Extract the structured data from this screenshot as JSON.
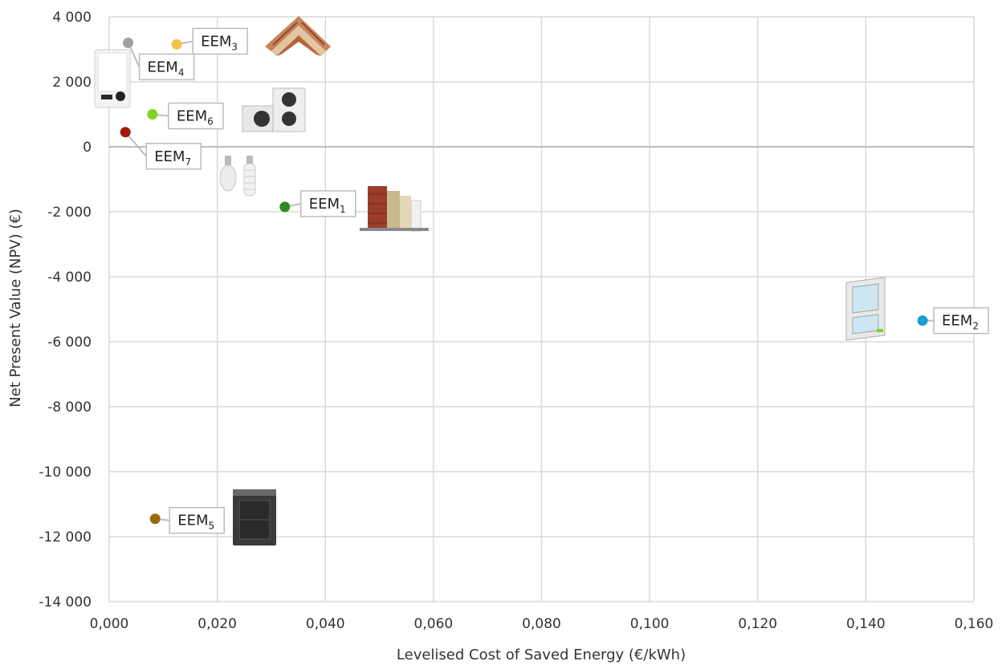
{
  "chart_data": {
    "type": "scatter",
    "xlabel": "Levelised Cost of Saved Energy (€/kWh)",
    "ylabel": "Net Present Value (NPV) (€)",
    "xlim": [
      0,
      0.16
    ],
    "ylim": [
      -14000,
      4000
    ],
    "x_ticks": [
      "0,000",
      "0,020",
      "0,040",
      "0,060",
      "0,080",
      "0,100",
      "0,120",
      "0,140",
      "0,160"
    ],
    "y_ticks": [
      "4 000",
      "2 000",
      "0",
      "-2 000",
      "-4 000",
      "-6 000",
      "-8 000",
      "-10 000",
      "-12 000",
      "-14 000"
    ],
    "grid": true,
    "points": [
      {
        "label": "EEM",
        "sub": "1",
        "x": 0.0325,
        "y": -1850,
        "color": "#2e8b1e",
        "icon": "wall-insulation-icon"
      },
      {
        "label": "EEM",
        "sub": "2",
        "x": 0.1505,
        "y": -5350,
        "color": "#1a9fd0",
        "icon": "window-icon"
      },
      {
        "label": "EEM",
        "sub": "3",
        "x": 0.0125,
        "y": 3150,
        "color": "#f2c14e",
        "icon": "roof-insulation-icon"
      },
      {
        "label": "EEM",
        "sub": "4",
        "x": 0.0035,
        "y": 3200,
        "color": "#a0a0a0",
        "icon": "boiler-icon"
      },
      {
        "label": "EEM",
        "sub": "5",
        "x": 0.0085,
        "y": -11450,
        "color": "#9a6b10",
        "icon": "furnace-icon"
      },
      {
        "label": "EEM",
        "sub": "6",
        "x": 0.008,
        "y": 1000,
        "color": "#7ed321",
        "icon": "heat-pump-icon"
      },
      {
        "label": "EEM",
        "sub": "7",
        "x": 0.003,
        "y": 450,
        "color": "#a01a10",
        "icon": "light-bulb-icon"
      }
    ]
  }
}
